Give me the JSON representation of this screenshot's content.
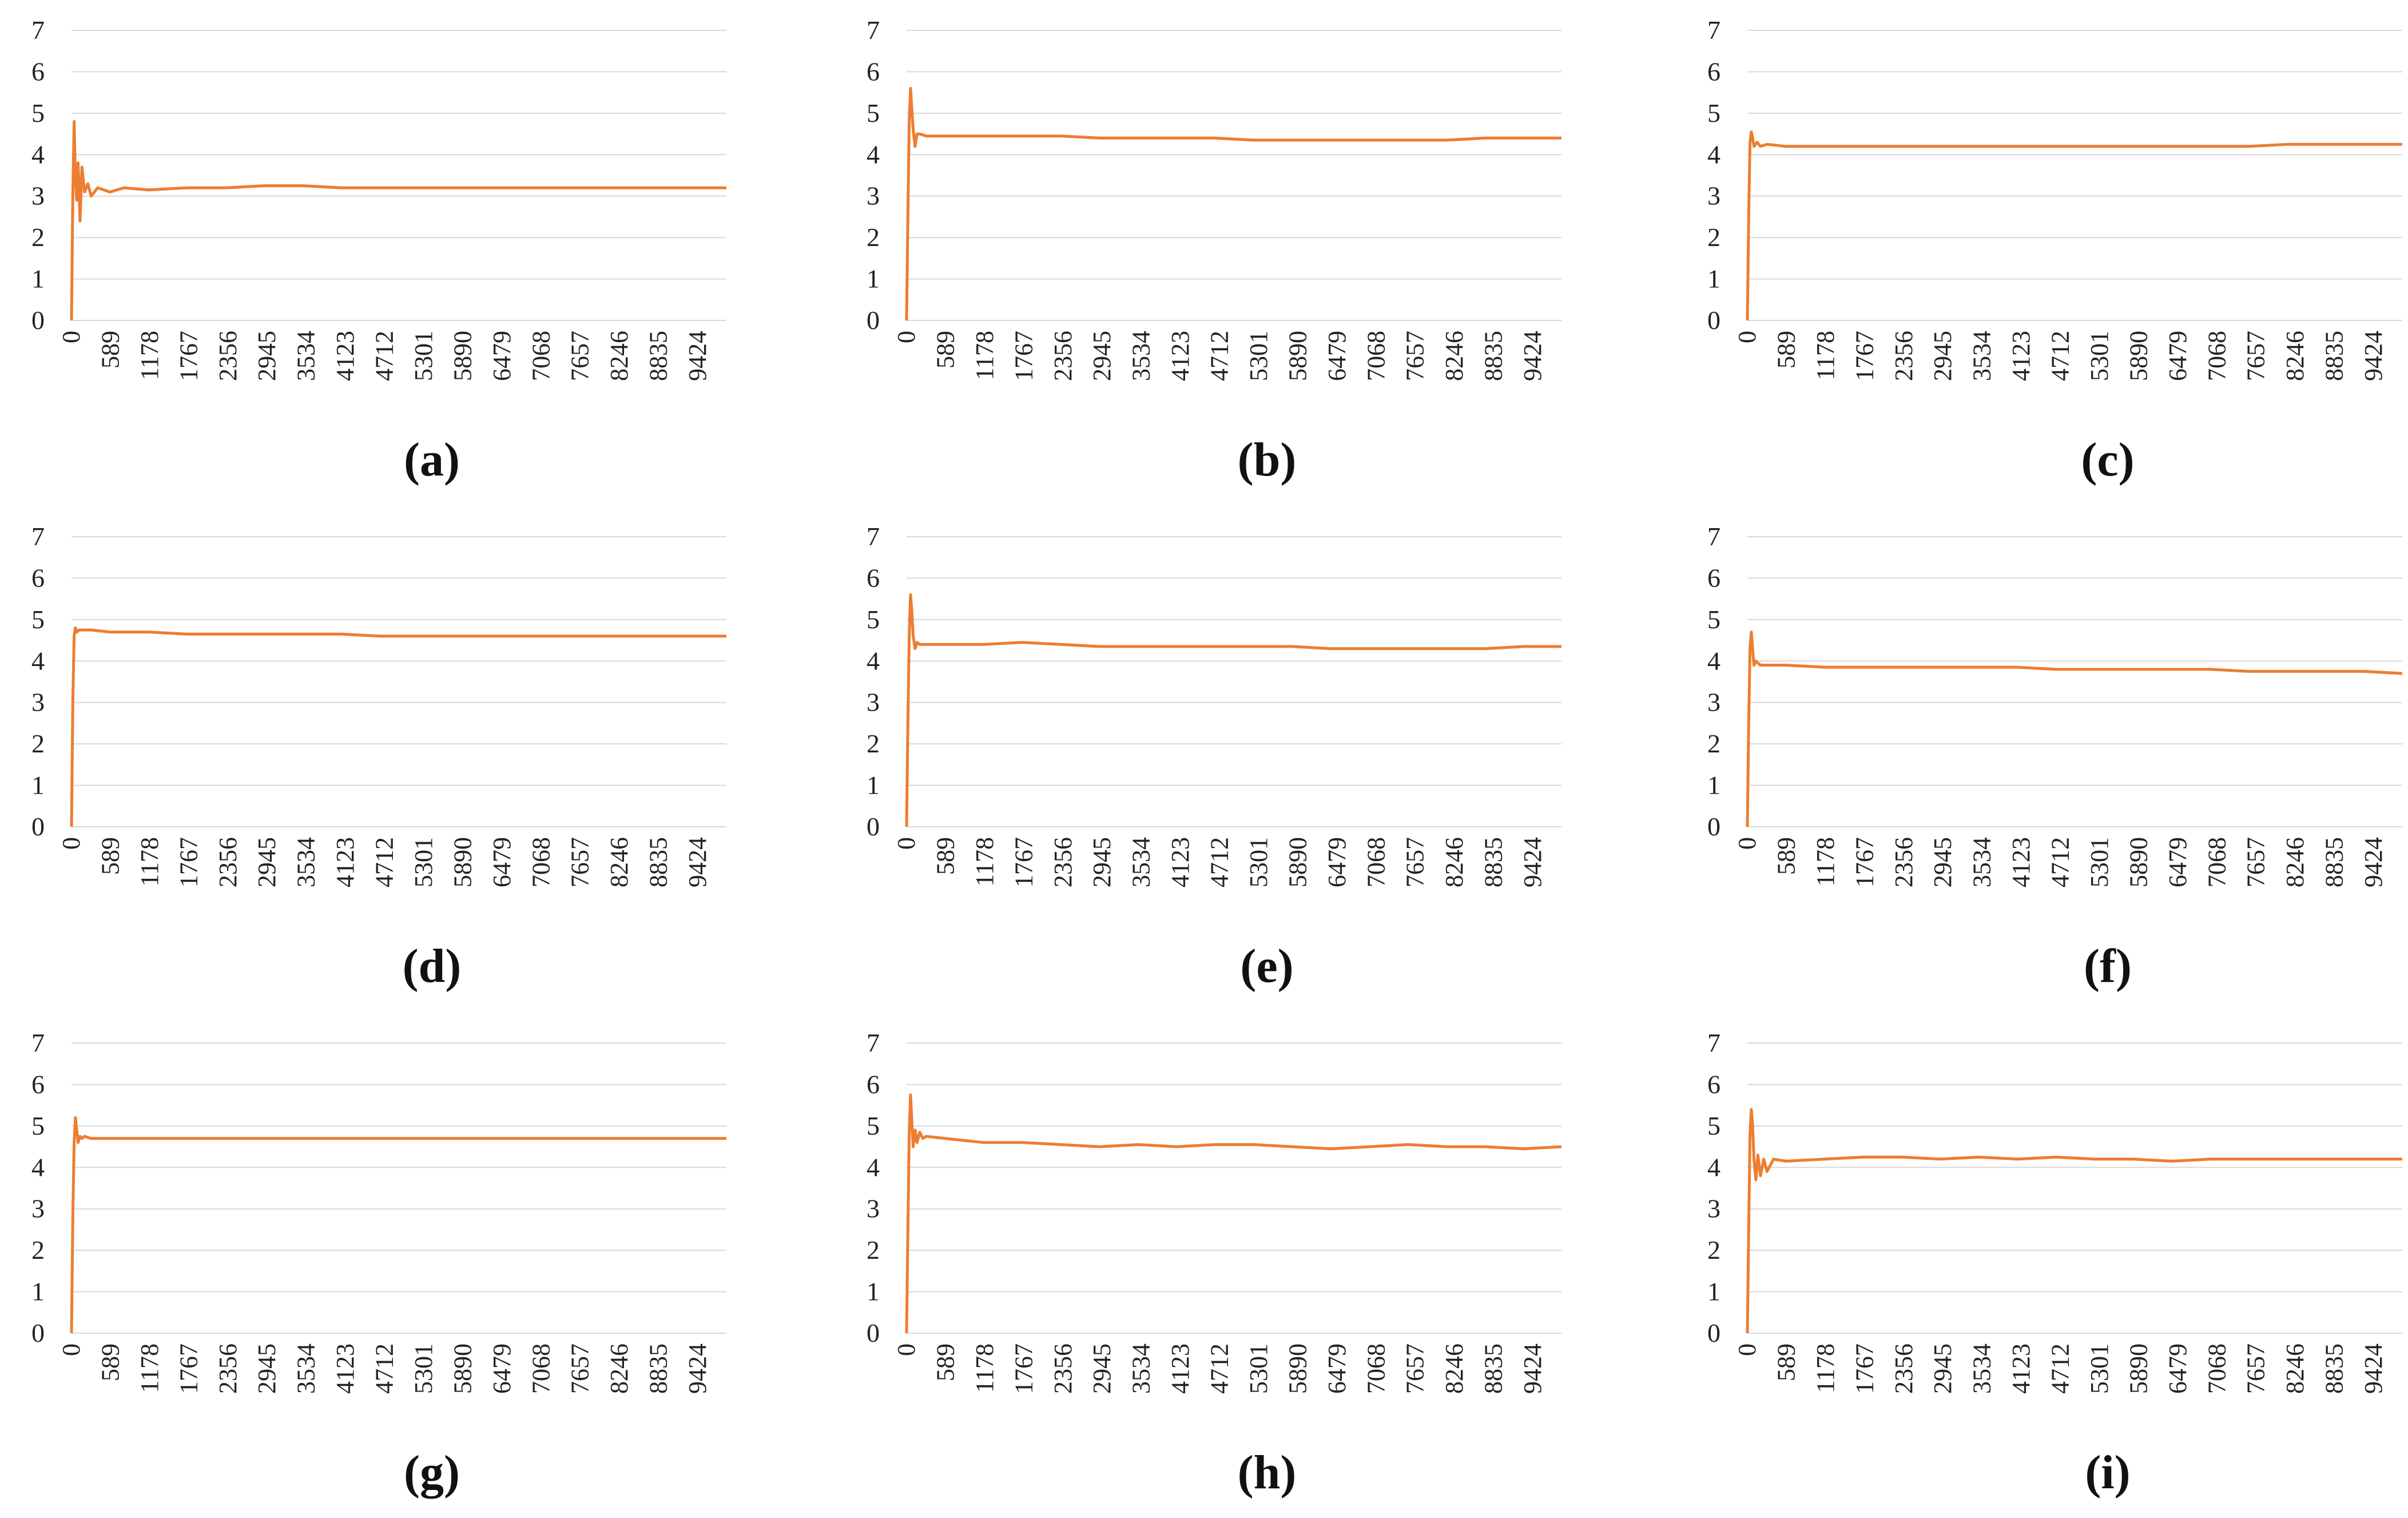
{
  "colors": {
    "series": "#ED7D31",
    "grid": "#d9d9d9",
    "text": "#222222"
  },
  "chart_data": [
    {
      "type": "line",
      "caption": "(a)",
      "ylim": [
        0,
        7
      ],
      "yticks": [
        "0",
        "1",
        "2",
        "3",
        "4",
        "5",
        "6",
        "7"
      ],
      "x_tick_labels": [
        "0",
        "589",
        "1178",
        "1767",
        "2356",
        "2945",
        "3534",
        "4123",
        "4712",
        "5301",
        "5890",
        "6479",
        "7068",
        "7657",
        "8246",
        "8835",
        "9424"
      ],
      "xlim": [
        0,
        10000
      ],
      "grid": "horizontal",
      "series": [
        {
          "x": [
            0,
            20,
            40,
            60,
            80,
            100,
            130,
            160,
            200,
            250,
            300,
            400,
            589,
            800,
            1178,
            1767,
            2356,
            2945,
            3534,
            4123,
            4712,
            5301,
            5890,
            6479,
            7068,
            7657,
            8246,
            8835,
            9424,
            10000
          ],
          "y": [
            0,
            3.0,
            4.8,
            3.4,
            2.9,
            3.8,
            2.4,
            3.7,
            3.1,
            3.3,
            3.0,
            3.2,
            3.1,
            3.2,
            3.15,
            3.2,
            3.2,
            3.25,
            3.25,
            3.2,
            3.2,
            3.2,
            3.2,
            3.2,
            3.2,
            3.2,
            3.2,
            3.2,
            3.2,
            3.2
          ]
        }
      ]
    },
    {
      "type": "line",
      "caption": "(b)",
      "ylim": [
        0,
        7
      ],
      "yticks": [
        "0",
        "1",
        "2",
        "3",
        "4",
        "5",
        "6",
        "7"
      ],
      "x_tick_labels": [
        "0",
        "589",
        "1178",
        "1767",
        "2356",
        "2945",
        "3534",
        "4123",
        "4712",
        "5301",
        "5890",
        "6479",
        "7068",
        "7657",
        "8246",
        "8835",
        "9424"
      ],
      "xlim": [
        0,
        10000
      ],
      "grid": "horizontal",
      "series": [
        {
          "x": [
            0,
            20,
            40,
            60,
            80,
            100,
            130,
            160,
            200,
            300,
            589,
            1178,
            1767,
            2356,
            2945,
            3534,
            4123,
            4712,
            5301,
            5890,
            6479,
            7068,
            7657,
            8246,
            8835,
            9424,
            10000
          ],
          "y": [
            0,
            2.5,
            4.8,
            5.6,
            5.1,
            4.6,
            4.2,
            4.5,
            4.5,
            4.45,
            4.45,
            4.45,
            4.45,
            4.45,
            4.4,
            4.4,
            4.4,
            4.4,
            4.35,
            4.35,
            4.35,
            4.35,
            4.35,
            4.35,
            4.4,
            4.4,
            4.4
          ]
        }
      ]
    },
    {
      "type": "line",
      "caption": "(c)",
      "ylim": [
        0,
        7
      ],
      "yticks": [
        "0",
        "1",
        "2",
        "3",
        "4",
        "5",
        "6",
        "7"
      ],
      "x_tick_labels": [
        "0",
        "589",
        "1178",
        "1767",
        "2356",
        "2945",
        "3534",
        "4123",
        "4712",
        "5301",
        "5890",
        "6479",
        "7068",
        "7657",
        "8246",
        "8835",
        "9424"
      ],
      "xlim": [
        0,
        10000
      ],
      "grid": "horizontal",
      "series": [
        {
          "x": [
            0,
            20,
            40,
            60,
            80,
            100,
            150,
            200,
            300,
            589,
            1178,
            1767,
            2356,
            2945,
            3534,
            4123,
            4712,
            5301,
            5890,
            6479,
            7068,
            7657,
            8246,
            8835,
            9424,
            10000
          ],
          "y": [
            0,
            2.5,
            4.3,
            4.55,
            4.4,
            4.2,
            4.3,
            4.2,
            4.25,
            4.2,
            4.2,
            4.2,
            4.2,
            4.2,
            4.2,
            4.2,
            4.2,
            4.2,
            4.2,
            4.2,
            4.2,
            4.2,
            4.25,
            4.25,
            4.25,
            4.25
          ]
        }
      ]
    },
    {
      "type": "line",
      "caption": "(d)",
      "ylim": [
        0,
        7
      ],
      "yticks": [
        "0",
        "1",
        "2",
        "3",
        "4",
        "5",
        "6",
        "7"
      ],
      "x_tick_labels": [
        "0",
        "589",
        "1178",
        "1767",
        "2356",
        "2945",
        "3534",
        "4123",
        "4712",
        "5301",
        "5890",
        "6479",
        "7068",
        "7657",
        "8246",
        "8835",
        "9424"
      ],
      "xlim": [
        0,
        10000
      ],
      "grid": "horizontal",
      "series": [
        {
          "x": [
            0,
            20,
            40,
            60,
            80,
            120,
            200,
            300,
            589,
            1178,
            1767,
            2356,
            2945,
            3534,
            4123,
            4712,
            5301,
            5890,
            6479,
            7068,
            7657,
            8246,
            8835,
            9424,
            10000
          ],
          "y": [
            0,
            3.0,
            4.6,
            4.8,
            4.7,
            4.75,
            4.75,
            4.75,
            4.7,
            4.7,
            4.65,
            4.65,
            4.65,
            4.65,
            4.65,
            4.6,
            4.6,
            4.6,
            4.6,
            4.6,
            4.6,
            4.6,
            4.6,
            4.6,
            4.6
          ]
        }
      ]
    },
    {
      "type": "line",
      "caption": "(e)",
      "ylim": [
        0,
        7
      ],
      "yticks": [
        "0",
        "1",
        "2",
        "3",
        "4",
        "5",
        "6",
        "7"
      ],
      "x_tick_labels": [
        "0",
        "589",
        "1178",
        "1767",
        "2356",
        "2945",
        "3534",
        "4123",
        "4712",
        "5301",
        "5890",
        "6479",
        "7068",
        "7657",
        "8246",
        "8835",
        "9424"
      ],
      "xlim": [
        0,
        10000
      ],
      "grid": "horizontal",
      "series": [
        {
          "x": [
            0,
            20,
            40,
            60,
            80,
            100,
            130,
            160,
            200,
            300,
            589,
            1178,
            1767,
            2356,
            2945,
            3534,
            4123,
            4712,
            5301,
            5890,
            6479,
            7068,
            7657,
            8246,
            8835,
            9424,
            10000
          ],
          "y": [
            0,
            2.5,
            4.6,
            5.6,
            5.2,
            4.6,
            4.3,
            4.45,
            4.4,
            4.4,
            4.4,
            4.4,
            4.45,
            4.4,
            4.35,
            4.35,
            4.35,
            4.35,
            4.35,
            4.35,
            4.3,
            4.3,
            4.3,
            4.3,
            4.3,
            4.35,
            4.35
          ]
        }
      ]
    },
    {
      "type": "line",
      "caption": "(f)",
      "ylim": [
        0,
        7
      ],
      "yticks": [
        "0",
        "1",
        "2",
        "3",
        "4",
        "5",
        "6",
        "7"
      ],
      "x_tick_labels": [
        "0",
        "589",
        "1178",
        "1767",
        "2356",
        "2945",
        "3534",
        "4123",
        "4712",
        "5301",
        "5890",
        "6479",
        "7068",
        "7657",
        "8246",
        "8835",
        "9424"
      ],
      "xlim": [
        0,
        10000
      ],
      "grid": "horizontal",
      "series": [
        {
          "x": [
            0,
            20,
            40,
            60,
            80,
            100,
            130,
            160,
            200,
            300,
            589,
            1178,
            1767,
            2356,
            2945,
            3534,
            4123,
            4712,
            5301,
            5890,
            6479,
            7068,
            7657,
            8246,
            8835,
            9424,
            10000
          ],
          "y": [
            0,
            2.5,
            4.3,
            4.7,
            4.3,
            3.9,
            4.0,
            3.95,
            3.9,
            3.9,
            3.9,
            3.85,
            3.85,
            3.85,
            3.85,
            3.85,
            3.85,
            3.8,
            3.8,
            3.8,
            3.8,
            3.8,
            3.75,
            3.75,
            3.75,
            3.75,
            3.7
          ]
        }
      ]
    },
    {
      "type": "line",
      "caption": "(g)",
      "ylim": [
        0,
        7
      ],
      "yticks": [
        "0",
        "1",
        "2",
        "3",
        "4",
        "5",
        "6",
        "7"
      ],
      "x_tick_labels": [
        "0",
        "589",
        "1178",
        "1767",
        "2356",
        "2945",
        "3534",
        "4123",
        "4712",
        "5301",
        "5890",
        "6479",
        "7068",
        "7657",
        "8246",
        "8835",
        "9424"
      ],
      "xlim": [
        0,
        10000
      ],
      "grid": "horizontal",
      "series": [
        {
          "x": [
            0,
            20,
            40,
            60,
            80,
            100,
            130,
            160,
            200,
            300,
            589,
            1178,
            1767,
            2356,
            2945,
            3534,
            4123,
            4712,
            5301,
            5890,
            6479,
            7068,
            7657,
            8246,
            8835,
            9424,
            10000
          ],
          "y": [
            0,
            2.8,
            4.6,
            5.2,
            4.9,
            4.6,
            4.75,
            4.7,
            4.75,
            4.7,
            4.7,
            4.7,
            4.7,
            4.7,
            4.7,
            4.7,
            4.7,
            4.7,
            4.7,
            4.7,
            4.7,
            4.7,
            4.7,
            4.7,
            4.7,
            4.7,
            4.7
          ]
        }
      ]
    },
    {
      "type": "line",
      "caption": "(h)",
      "ylim": [
        0,
        7
      ],
      "yticks": [
        "0",
        "1",
        "2",
        "3",
        "4",
        "5",
        "6",
        "7"
      ],
      "x_tick_labels": [
        "0",
        "589",
        "1178",
        "1767",
        "2356",
        "2945",
        "3534",
        "4123",
        "4712",
        "5301",
        "5890",
        "6479",
        "7068",
        "7657",
        "8246",
        "8835",
        "9424"
      ],
      "xlim": [
        0,
        10000
      ],
      "grid": "horizontal",
      "series": [
        {
          "x": [
            0,
            20,
            40,
            60,
            80,
            100,
            130,
            160,
            200,
            250,
            300,
            589,
            1178,
            1767,
            2356,
            2945,
            3534,
            4123,
            4712,
            5301,
            5890,
            6479,
            7068,
            7657,
            8246,
            8835,
            9424,
            10000
          ],
          "y": [
            0,
            2.5,
            4.8,
            5.75,
            5.1,
            4.5,
            4.9,
            4.6,
            4.85,
            4.7,
            4.75,
            4.7,
            4.6,
            4.6,
            4.55,
            4.5,
            4.55,
            4.5,
            4.55,
            4.55,
            4.5,
            4.45,
            4.5,
            4.55,
            4.5,
            4.5,
            4.45,
            4.5
          ]
        }
      ]
    },
    {
      "type": "line",
      "caption": "(i)",
      "ylim": [
        0,
        7
      ],
      "yticks": [
        "0",
        "1",
        "2",
        "3",
        "4",
        "5",
        "6",
        "7"
      ],
      "x_tick_labels": [
        "0",
        "589",
        "1178",
        "1767",
        "2356",
        "2945",
        "3534",
        "4123",
        "4712",
        "5301",
        "5890",
        "6479",
        "7068",
        "7657",
        "8246",
        "8835",
        "9424"
      ],
      "xlim": [
        0,
        10000
      ],
      "grid": "horizontal",
      "series": [
        {
          "x": [
            0,
            20,
            40,
            60,
            80,
            100,
            130,
            160,
            200,
            250,
            300,
            400,
            589,
            1178,
            1767,
            2356,
            2945,
            3534,
            4123,
            4712,
            5301,
            5890,
            6479,
            7068,
            7657,
            8246,
            8835,
            9424,
            10000
          ],
          "y": [
            0,
            2.5,
            4.8,
            5.4,
            5.0,
            4.2,
            3.7,
            4.3,
            3.8,
            4.2,
            3.9,
            4.2,
            4.15,
            4.2,
            4.25,
            4.25,
            4.2,
            4.25,
            4.2,
            4.25,
            4.2,
            4.2,
            4.15,
            4.2,
            4.2,
            4.2,
            4.2,
            4.2,
            4.2
          ]
        }
      ]
    }
  ]
}
